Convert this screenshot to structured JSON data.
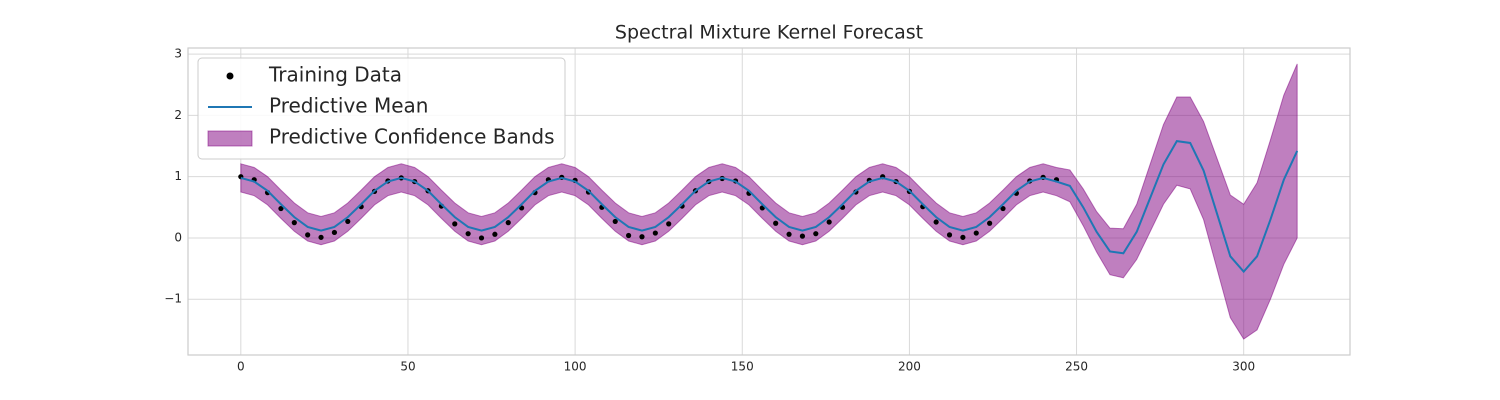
{
  "chart_data": {
    "type": "line",
    "title": "Spectral Mixture Kernel Forecast",
    "xlim": [
      -15.8,
      331.8
    ],
    "ylim": [
      -1.91,
      3.1
    ],
    "xticks": [
      0,
      50,
      100,
      150,
      200,
      250,
      300
    ],
    "yticks": [
      {
        "value": -1,
        "label": "−1"
      },
      0,
      1,
      2,
      3
    ],
    "grid": true,
    "legend": "upper left",
    "training": {
      "name": "Training Data",
      "color": "#000000",
      "x": [
        0,
        4,
        8,
        12,
        16,
        20,
        24,
        28,
        32,
        36,
        40,
        44,
        48,
        52,
        56,
        60,
        64,
        68,
        72,
        76,
        80,
        84,
        88,
        92,
        96,
        100,
        104,
        108,
        112,
        116,
        120,
        124,
        128,
        132,
        136,
        140,
        144,
        148,
        152,
        156,
        160,
        164,
        168,
        172,
        176,
        180,
        184,
        188,
        192,
        196,
        200,
        204,
        208,
        212,
        216,
        220,
        224,
        228,
        232,
        236,
        240,
        244
      ],
      "values": [
        1.0,
        0.95,
        0.74,
        0.48,
        0.25,
        0.05,
        0.01,
        0.09,
        0.27,
        0.51,
        0.76,
        0.93,
        0.98,
        0.92,
        0.77,
        0.52,
        0.23,
        0.07,
        0.0,
        0.06,
        0.25,
        0.49,
        0.74,
        0.95,
        0.99,
        0.94,
        0.75,
        0.5,
        0.27,
        0.04,
        0.02,
        0.08,
        0.23,
        0.52,
        0.77,
        0.92,
        0.97,
        0.93,
        0.73,
        0.49,
        0.24,
        0.06,
        0.03,
        0.07,
        0.26,
        0.5,
        0.75,
        0.94,
        1.0,
        0.92,
        0.76,
        0.51,
        0.26,
        0.05,
        0.01,
        0.08,
        0.24,
        0.48,
        0.73,
        0.93,
        0.99,
        0.95
      ]
    },
    "mean": {
      "name": "Predictive Mean",
      "color": "#1f77b4",
      "x": [
        0,
        4,
        8,
        12,
        16,
        20,
        24,
        28,
        32,
        36,
        40,
        44,
        48,
        52,
        56,
        60,
        64,
        68,
        72,
        76,
        80,
        84,
        88,
        92,
        96,
        100,
        104,
        108,
        112,
        116,
        120,
        124,
        128,
        132,
        136,
        140,
        144,
        148,
        152,
        156,
        160,
        164,
        168,
        172,
        176,
        180,
        184,
        188,
        192,
        196,
        200,
        204,
        208,
        212,
        216,
        220,
        224,
        228,
        232,
        236,
        240,
        244,
        248,
        252,
        256,
        260,
        264,
        268,
        272,
        276,
        280,
        284,
        288,
        292,
        296,
        300,
        304,
        308,
        312,
        316
      ],
      "values": [
        0.98,
        0.92,
        0.77,
        0.55,
        0.34,
        0.18,
        0.12,
        0.18,
        0.34,
        0.55,
        0.77,
        0.92,
        0.98,
        0.92,
        0.77,
        0.55,
        0.34,
        0.18,
        0.12,
        0.18,
        0.34,
        0.55,
        0.77,
        0.92,
        0.98,
        0.92,
        0.77,
        0.55,
        0.34,
        0.18,
        0.12,
        0.18,
        0.34,
        0.55,
        0.77,
        0.92,
        0.98,
        0.92,
        0.77,
        0.55,
        0.34,
        0.18,
        0.12,
        0.18,
        0.34,
        0.55,
        0.77,
        0.92,
        0.98,
        0.92,
        0.77,
        0.55,
        0.34,
        0.18,
        0.12,
        0.18,
        0.34,
        0.55,
        0.77,
        0.92,
        0.98,
        0.92,
        0.85,
        0.5,
        0.1,
        -0.22,
        -0.25,
        0.1,
        0.65,
        1.2,
        1.58,
        1.55,
        1.1,
        0.4,
        -0.3,
        -0.55,
        -0.3,
        0.3,
        0.95,
        1.42
      ]
    },
    "band": {
      "name": "Predictive Confidence Bands",
      "color": "#800080",
      "alpha": 0.5,
      "upper": [
        1.21,
        1.15,
        1.0,
        0.78,
        0.57,
        0.41,
        0.35,
        0.41,
        0.57,
        0.78,
        1.0,
        1.15,
        1.21,
        1.15,
        1.0,
        0.78,
        0.57,
        0.41,
        0.35,
        0.41,
        0.57,
        0.78,
        1.0,
        1.15,
        1.21,
        1.15,
        1.0,
        0.78,
        0.57,
        0.41,
        0.35,
        0.41,
        0.57,
        0.78,
        1.0,
        1.15,
        1.21,
        1.15,
        1.0,
        0.78,
        0.57,
        0.41,
        0.35,
        0.41,
        0.57,
        0.78,
        1.0,
        1.15,
        1.21,
        1.15,
        1.0,
        0.78,
        0.57,
        0.41,
        0.35,
        0.41,
        0.57,
        0.78,
        1.0,
        1.15,
        1.21,
        1.15,
        1.11,
        0.8,
        0.43,
        0.16,
        0.15,
        0.55,
        1.2,
        1.85,
        2.3,
        2.3,
        1.9,
        1.3,
        0.7,
        0.55,
        0.9,
        1.6,
        2.33,
        2.84
      ],
      "lower": [
        0.75,
        0.69,
        0.54,
        0.32,
        0.11,
        -0.05,
        -0.11,
        -0.05,
        0.11,
        0.32,
        0.54,
        0.69,
        0.75,
        0.69,
        0.54,
        0.32,
        0.11,
        -0.05,
        -0.11,
        -0.05,
        0.11,
        0.32,
        0.54,
        0.69,
        0.75,
        0.69,
        0.54,
        0.32,
        0.11,
        -0.05,
        -0.11,
        -0.05,
        0.11,
        0.32,
        0.54,
        0.69,
        0.75,
        0.69,
        0.54,
        0.32,
        0.11,
        -0.05,
        -0.11,
        -0.05,
        0.11,
        0.32,
        0.54,
        0.69,
        0.75,
        0.69,
        0.54,
        0.32,
        0.11,
        -0.05,
        -0.11,
        -0.05,
        0.11,
        0.32,
        0.54,
        0.69,
        0.75,
        0.69,
        0.59,
        0.2,
        -0.23,
        -0.6,
        -0.65,
        -0.35,
        0.1,
        0.55,
        0.86,
        0.8,
        0.3,
        -0.5,
        -1.3,
        -1.65,
        -1.5,
        -1.0,
        -0.43,
        0.0
      ]
    }
  }
}
